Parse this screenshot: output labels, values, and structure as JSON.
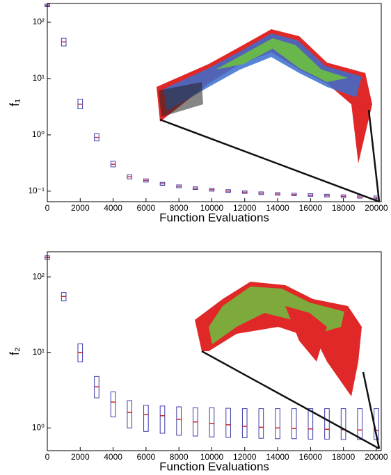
{
  "chart_data": [
    {
      "type": "box",
      "xlabel": "Function Evaluations",
      "ylabel": "f₁",
      "log_y": true,
      "color": "#3a3aa8",
      "median_color": "#c03060",
      "x": [
        0,
        1000,
        2000,
        3000,
        4000,
        5000,
        6000,
        7000,
        8000,
        9000,
        10000,
        11000,
        12000,
        13000,
        14000,
        15000,
        16000,
        17000,
        18000,
        19000,
        20000
      ],
      "q1": [
        190,
        38,
        2.9,
        0.78,
        0.27,
        0.165,
        0.145,
        0.127,
        0.115,
        0.107,
        0.1,
        0.095,
        0.091,
        0.087,
        0.085,
        0.083,
        0.081,
        0.079,
        0.077,
        0.075,
        0.073
      ],
      "median": [
        200,
        45,
        3.5,
        0.9,
        0.3,
        0.18,
        0.155,
        0.135,
        0.122,
        0.113,
        0.106,
        0.1,
        0.096,
        0.092,
        0.089,
        0.087,
        0.085,
        0.083,
        0.081,
        0.079,
        0.077
      ],
      "q3": [
        210,
        52,
        4.3,
        1.05,
        0.34,
        0.195,
        0.165,
        0.143,
        0.129,
        0.119,
        0.112,
        0.106,
        0.101,
        0.097,
        0.094,
        0.092,
        0.09,
        0.088,
        0.086,
        0.084,
        0.082
      ],
      "xlim": [
        0,
        20300
      ],
      "xticks": [
        0,
        2000,
        4000,
        6000,
        8000,
        10000,
        12000,
        14000,
        16000,
        18000,
        20000
      ],
      "ylim": [
        0.065,
        216
      ],
      "yticks": [
        {
          "value": 0.1,
          "label": "10⁻¹"
        },
        {
          "value": 1,
          "label": "10⁰"
        },
        {
          "value": 10,
          "label": "10¹"
        },
        {
          "value": 100,
          "label": "10²"
        }
      ]
    },
    {
      "type": "box",
      "xlabel": "Function Evaluations",
      "ylabel": "f₂",
      "log_y": true,
      "color": "#3a3aa8",
      "median_color": "#d02020",
      "x": [
        0,
        1000,
        2000,
        3000,
        4000,
        5000,
        6000,
        7000,
        8000,
        9000,
        10000,
        11000,
        12000,
        13000,
        14000,
        15000,
        16000,
        17000,
        18000,
        19000,
        20000
      ],
      "q1": [
        170,
        48,
        7.5,
        2.5,
        1.4,
        1.0,
        0.9,
        0.85,
        0.8,
        0.78,
        0.76,
        0.75,
        0.74,
        0.73,
        0.72,
        0.72,
        0.71,
        0.71,
        0.7,
        0.7,
        0.7
      ],
      "median": [
        180,
        55,
        10,
        3.5,
        2.2,
        1.6,
        1.5,
        1.45,
        1.3,
        1.2,
        1.15,
        1.1,
        1.05,
        1.02,
        1.0,
        0.98,
        0.97,
        0.96,
        0.95,
        0.94,
        0.93
      ],
      "q3": [
        190,
        62,
        13,
        4.8,
        3.0,
        2.3,
        2.0,
        1.95,
        1.9,
        1.85,
        1.85,
        1.82,
        1.8,
        1.8,
        1.8,
        1.8,
        1.8,
        1.8,
        1.8,
        1.8,
        1.8
      ],
      "xlim": [
        0,
        20300
      ],
      "xticks": [
        0,
        2000,
        4000,
        6000,
        8000,
        10000,
        12000,
        14000,
        16000,
        18000,
        20000
      ],
      "ylim": [
        0.5,
        215
      ],
      "yticks": [
        {
          "value": 1,
          "label": "10⁰"
        },
        {
          "value": 10,
          "label": "10¹"
        },
        {
          "value": 100,
          "label": "10²"
        }
      ]
    }
  ]
}
